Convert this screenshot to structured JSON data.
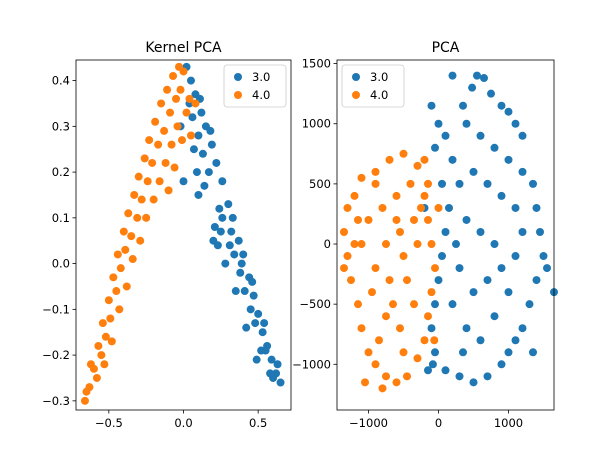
{
  "chart_data": [
    {
      "type": "scatter",
      "title": "Kernel PCA",
      "xlabel": "",
      "ylabel": "",
      "xlim": [
        -0.72,
        0.72
      ],
      "ylim": [
        -0.32,
        0.445
      ],
      "xticks": [
        -0.5,
        0.0,
        0.5
      ],
      "xtick_labels": [
        "−0.5",
        "0.0",
        "0.5"
      ],
      "yticks": [
        -0.3,
        -0.2,
        -0.1,
        0.0,
        0.1,
        0.2,
        0.3,
        0.4
      ],
      "ytick_labels": [
        "−0.3",
        "−0.2",
        "−0.1",
        "0.0",
        "0.1",
        "0.2",
        "0.3",
        "0.4"
      ],
      "legend": "top-right",
      "grid": false,
      "series": [
        {
          "name": "3.0",
          "color": "#1f77b4",
          "points": [
            [
              0.02,
              0.43
            ],
            [
              0.05,
              0.4
            ],
            [
              0.08,
              0.37
            ],
            [
              0.12,
              0.33
            ],
            [
              0.15,
              0.3
            ],
            [
              0.19,
              0.26
            ],
            [
              0.22,
              0.22
            ],
            [
              0.26,
              0.18
            ],
            [
              0.3,
              0.13
            ],
            [
              0.33,
              0.1
            ],
            [
              0.37,
              0.05
            ],
            [
              0.4,
              0.02
            ],
            [
              0.44,
              -0.03
            ],
            [
              0.47,
              -0.07
            ],
            [
              0.5,
              -0.11
            ],
            [
              0.53,
              -0.15
            ],
            [
              0.56,
              -0.18
            ],
            [
              0.59,
              -0.21
            ],
            [
              0.62,
              -0.24
            ],
            [
              0.65,
              -0.26
            ],
            [
              0.04,
              0.35
            ],
            [
              0.1,
              0.28
            ],
            [
              0.17,
              0.2
            ],
            [
              0.24,
              0.12
            ],
            [
              0.31,
              0.04
            ],
            [
              0.38,
              -0.02
            ],
            [
              0.45,
              -0.1
            ],
            [
              0.52,
              -0.19
            ],
            [
              0.58,
              -0.24
            ],
            [
              -0.02,
              0.3
            ],
            [
              0.07,
              0.25
            ],
            [
              0.14,
              0.17
            ],
            [
              0.21,
              0.08
            ],
            [
              0.28,
              0.0
            ],
            [
              0.35,
              -0.06
            ],
            [
              0.42,
              -0.14
            ],
            [
              0.49,
              -0.21
            ],
            [
              0.0,
              0.18
            ],
            [
              0.1,
              0.15
            ],
            [
              0.2,
              0.05
            ],
            [
              0.25,
              0.07
            ],
            [
              0.34,
              0.02
            ],
            [
              0.41,
              -0.06
            ],
            [
              0.48,
              -0.13
            ],
            [
              0.55,
              -0.19
            ],
            [
              0.6,
              -0.25
            ],
            [
              0.63,
              -0.22
            ],
            [
              0.13,
              0.24
            ],
            [
              0.18,
              0.29
            ],
            [
              0.26,
              0.1
            ],
            [
              0.32,
              0.07
            ],
            [
              0.39,
              0.0
            ],
            [
              0.46,
              -0.04
            ],
            [
              0.54,
              -0.13
            ],
            [
              0.06,
              0.32
            ],
            [
              0.11,
              0.36
            ],
            [
              0.09,
              0.2
            ],
            [
              0.23,
              0.04
            ]
          ]
        },
        {
          "name": "4.0",
          "color": "#ff7f0e",
          "points": [
            [
              -0.66,
              -0.3
            ],
            [
              -0.63,
              -0.27
            ],
            [
              -0.6,
              -0.23
            ],
            [
              -0.57,
              -0.18
            ],
            [
              -0.54,
              -0.13
            ],
            [
              -0.5,
              -0.08
            ],
            [
              -0.47,
              -0.03
            ],
            [
              -0.44,
              0.02
            ],
            [
              -0.4,
              0.07
            ],
            [
              -0.37,
              0.11
            ],
            [
              -0.33,
              0.15
            ],
            [
              -0.3,
              0.19
            ],
            [
              -0.26,
              0.23
            ],
            [
              -0.23,
              0.27
            ],
            [
              -0.19,
              0.31
            ],
            [
              -0.15,
              0.35
            ],
            [
              -0.11,
              0.38
            ],
            [
              -0.07,
              0.41
            ],
            [
              -0.03,
              0.43
            ],
            [
              0.0,
              0.42
            ],
            [
              -0.62,
              -0.22
            ],
            [
              -0.58,
              -0.25
            ],
            [
              -0.55,
              -0.2
            ],
            [
              -0.52,
              -0.16
            ],
            [
              -0.49,
              -0.12
            ],
            [
              -0.45,
              -0.06
            ],
            [
              -0.42,
              -0.01
            ],
            [
              -0.39,
              0.03
            ],
            [
              -0.35,
              0.06
            ],
            [
              -0.31,
              0.1
            ],
            [
              -0.28,
              0.14
            ],
            [
              -0.24,
              0.18
            ],
            [
              -0.21,
              0.22
            ],
            [
              -0.17,
              0.26
            ],
            [
              -0.13,
              0.29
            ],
            [
              -0.09,
              0.33
            ],
            [
              -0.05,
              0.36
            ],
            [
              -0.02,
              0.38
            ],
            [
              -0.53,
              -0.22
            ],
            [
              -0.48,
              -0.17
            ],
            [
              -0.43,
              -0.1
            ],
            [
              -0.38,
              -0.05
            ],
            [
              -0.34,
              0.01
            ],
            [
              -0.29,
              0.05
            ],
            [
              -0.25,
              0.1
            ],
            [
              -0.2,
              0.14
            ],
            [
              -0.16,
              0.18
            ],
            [
              -0.12,
              0.22
            ],
            [
              -0.08,
              0.26
            ],
            [
              -0.04,
              0.3
            ],
            [
              0.02,
              0.33
            ],
            [
              0.04,
              0.36
            ],
            [
              -0.01,
              0.27
            ],
            [
              -0.06,
              0.21
            ],
            [
              -0.1,
              0.16
            ],
            [
              0.05,
              0.28
            ],
            [
              0.08,
              0.35
            ],
            [
              -0.65,
              -0.28
            ]
          ]
        }
      ]
    },
    {
      "type": "scatter",
      "title": "PCA",
      "xlabel": "",
      "ylabel": "",
      "xlim": [
        -1450,
        1650
      ],
      "ylim": [
        -1380,
        1530
      ],
      "xticks": [
        -1000,
        0,
        1000
      ],
      "xtick_labels": [
        "−1000",
        "0",
        "1000"
      ],
      "yticks": [
        -1000,
        -500,
        0,
        500,
        1000,
        1500
      ],
      "ytick_labels": [
        "−1000",
        "−500",
        "0",
        "500",
        "1000",
        "1500"
      ],
      "legend": "top-left",
      "grid": false,
      "series": [
        {
          "name": "3.0",
          "color": "#1f77b4",
          "points": [
            [
              550,
              1400
            ],
            [
              650,
              1380
            ],
            [
              480,
              1300
            ],
            [
              200,
              1400
            ],
            [
              750,
              1250
            ],
            [
              900,
              1150
            ],
            [
              350,
              1150
            ],
            [
              1100,
              1000
            ],
            [
              1200,
              900
            ],
            [
              1000,
              1100
            ],
            [
              -100,
              1150
            ],
            [
              0,
              1000
            ],
            [
              -50,
              800
            ],
            [
              100,
              900
            ],
            [
              200,
              700
            ],
            [
              400,
              1000
            ],
            [
              600,
              900
            ],
            [
              800,
              800
            ],
            [
              1000,
              700
            ],
            [
              1200,
              600
            ],
            [
              1350,
              500
            ],
            [
              1400,
              300
            ],
            [
              1450,
              100
            ],
            [
              1500,
              -100
            ],
            [
              1550,
              -200
            ],
            [
              1400,
              -300
            ],
            [
              1300,
              -500
            ],
            [
              1200,
              -700
            ],
            [
              1100,
              -800
            ],
            [
              1000,
              -900
            ],
            [
              900,
              -1000
            ],
            [
              700,
              -1100
            ],
            [
              500,
              -1150
            ],
            [
              300,
              -1100
            ],
            [
              100,
              -1050
            ],
            [
              -50,
              -900
            ],
            [
              -100,
              -700
            ],
            [
              -50,
              -500
            ],
            [
              0,
              -300
            ],
            [
              50,
              -100
            ],
            [
              100,
              100
            ],
            [
              150,
              300
            ],
            [
              50,
              500
            ],
            [
              300,
              500
            ],
            [
              500,
              600
            ],
            [
              700,
              500
            ],
            [
              900,
              400
            ],
            [
              1100,
              300
            ],
            [
              1200,
              100
            ],
            [
              1100,
              -100
            ],
            [
              900,
              -200
            ],
            [
              700,
              -300
            ],
            [
              500,
              -400
            ],
            [
              300,
              -200
            ],
            [
              250,
              0
            ],
            [
              400,
              200
            ],
            [
              600,
              100
            ],
            [
              800,
              0
            ],
            [
              1000,
              -400
            ],
            [
              800,
              -600
            ],
            [
              600,
              -800
            ],
            [
              400,
              -700
            ],
            [
              200,
              -500
            ],
            [
              350,
              -900
            ],
            [
              -150,
              -1050
            ],
            [
              1650,
              -400
            ],
            [
              -200,
              300
            ],
            [
              -80,
              -1000
            ],
            [
              1350,
              -900
            ]
          ]
        },
        {
          "name": "4.0",
          "color": "#ff7f0e",
          "points": [
            [
              -700,
              700
            ],
            [
              -500,
              750
            ],
            [
              -300,
              650
            ],
            [
              -200,
              700
            ],
            [
              -900,
              600
            ],
            [
              -1100,
              550
            ],
            [
              -1200,
              400
            ],
            [
              -1300,
              300
            ],
            [
              -1350,
              100
            ],
            [
              -1300,
              -100
            ],
            [
              -1250,
              -300
            ],
            [
              -1150,
              -500
            ],
            [
              -1100,
              -700
            ],
            [
              -1000,
              -900
            ],
            [
              -900,
              -1000
            ],
            [
              -750,
              -1100
            ],
            [
              -600,
              -1150
            ],
            [
              -450,
              -1100
            ],
            [
              -300,
              -950
            ],
            [
              -200,
              -800
            ],
            [
              -150,
              -600
            ],
            [
              -100,
              -400
            ],
            [
              -50,
              -200
            ],
            [
              -100,
              0
            ],
            [
              -150,
              200
            ],
            [
              -200,
              400
            ],
            [
              -400,
              500
            ],
            [
              -600,
              400
            ],
            [
              -800,
              300
            ],
            [
              -1000,
              200
            ],
            [
              -1100,
              0
            ],
            [
              -900,
              -200
            ],
            [
              -700,
              -300
            ],
            [
              -500,
              -100
            ],
            [
              -300,
              0
            ],
            [
              -350,
              200
            ],
            [
              -550,
              100
            ],
            [
              -750,
              0
            ],
            [
              -950,
              -400
            ],
            [
              -750,
              -600
            ],
            [
              -550,
              -700
            ],
            [
              -350,
              -500
            ],
            [
              -450,
              -300
            ],
            [
              -650,
              -500
            ],
            [
              -850,
              -800
            ],
            [
              -500,
              -900
            ],
            [
              -250,
              300
            ],
            [
              -600,
              200
            ],
            [
              -900,
              500
            ],
            [
              -1200,
              0
            ],
            [
              -150,
              500
            ],
            [
              0,
              300
            ],
            [
              -1050,
              -1150
            ],
            [
              -800,
              -1200
            ],
            [
              -1350,
              -200
            ],
            [
              -60,
              -800
            ],
            [
              -1150,
              200
            ]
          ]
        }
      ]
    }
  ]
}
